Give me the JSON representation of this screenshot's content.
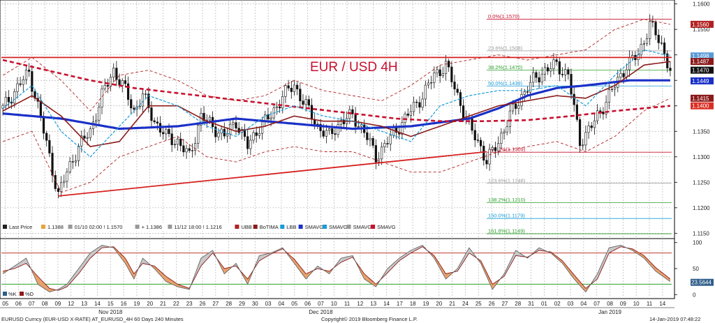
{
  "chart_data": {
    "type": "candlestick",
    "title": "EUR / USD 4H",
    "price_axis": {
      "ticks": [
        "1.1600",
        "1.1550",
        "1.1500",
        "1.1450",
        "1.1400",
        "1.1350",
        "1.1300",
        "1.1250",
        "1.1200",
        "1.1150"
      ],
      "range": [
        1.1145,
        1.1605
      ]
    },
    "osc_axis": {
      "ticks": [
        "100",
        "50",
        "0"
      ],
      "range": [
        -5,
        105
      ]
    },
    "price_badges": [
      {
        "label": "1.1560",
        "value": 1.156,
        "color": "#b22222"
      },
      {
        "label": "1.1498",
        "value": 1.1498,
        "color": "#5b9bd5"
      },
      {
        "label": "1.1487",
        "value": 1.1487,
        "color": "#8b1a1a"
      },
      {
        "label": "1.1470",
        "value": 1.147,
        "color": "#111111"
      },
      {
        "label": "1.1449",
        "value": 1.1449,
        "color": "#1a30c8"
      },
      {
        "label": "1.1415",
        "value": 1.1415,
        "color": "#8b1a1a"
      },
      {
        "label": "1.1400",
        "value": 1.14,
        "color": "#d93025"
      }
    ],
    "osc_badge": {
      "label": "23.5644",
      "value": 23.56,
      "color": "#2e5d8a"
    },
    "fib_levels": [
      {
        "label": "0.0%(1.1570)",
        "value": 1.157,
        "color": "#c8102e"
      },
      {
        "label": "23.6%(1.1508)",
        "value": 1.1508,
        "color": "#999999"
      },
      {
        "label": "38.2%(1.1470)",
        "value": 1.147,
        "color": "#2ca02c"
      },
      {
        "label": "50.0%(1.1439)",
        "value": 1.1439,
        "color": "#1a9cd8"
      },
      {
        "label": "100.0%(1.1309)",
        "value": 1.1309,
        "color": "#c8102e"
      },
      {
        "label": "123.6%(1.1248)",
        "value": 1.1248,
        "color": "#999999"
      },
      {
        "label": "138.2%(1.1210)",
        "value": 1.121,
        "color": "#2ca02c"
      },
      {
        "label": "150.0%(1.1179)",
        "value": 1.1179,
        "color": "#1a9cd8"
      },
      {
        "label": "161.8%(1.1149)",
        "value": 1.1149,
        "color": "#2ca02c"
      }
    ],
    "resistance_line": 1.1495,
    "trendline": {
      "from": {
        "bar": 19,
        "price": 1.1223
      },
      "to": {
        "bar": 166,
        "price": 1.131
      }
    },
    "osc_levels": {
      "overbought": 80,
      "oversold": 20
    },
    "x_ticks": [
      "05",
      "06",
      "07",
      "08",
      "09",
      "12",
      "13",
      "14",
      "15",
      "16",
      "19",
      "20",
      "21",
      "22",
      "23",
      "26",
      "27",
      "28",
      "29",
      "30",
      "03",
      "04",
      "05",
      "06",
      "07",
      "10",
      "11",
      "12",
      "13",
      "14",
      "17",
      "18",
      "19",
      "20",
      "21",
      "24",
      "25",
      "26",
      "27",
      "28",
      "31",
      "01",
      "02",
      "03",
      "04",
      "07",
      "08",
      "09",
      "10",
      "11",
      "14"
    ],
    "month_labels": [
      {
        "label": "Nov 2018",
        "tick_index": 8
      },
      {
        "label": "Dec 2018",
        "tick_index": 24
      },
      {
        "label": "Jan 2019",
        "tick_index": 46
      }
    ],
    "legend": [
      {
        "label": "Last Price",
        "color": "#222222"
      },
      {
        "label": "1.1388",
        "color": "#e8a33d"
      },
      {
        "label": "01/10 02:00 ! 1.1570",
        "color": "#999999"
      },
      {
        "label": "+ 1.1386",
        "color": "#999999"
      },
      {
        "label": "11/12 18:00 ! 1.1216",
        "color": "#999999"
      },
      {
        "label": "UBB",
        "color": "#b22222"
      },
      {
        "label": "BoTIMA",
        "color": "#8b1a1a"
      },
      {
        "label": "LBB",
        "color": "#1a9cd8"
      },
      {
        "label": "SMAVG",
        "color": "#1a30c8"
      },
      {
        "label": "SMAVG",
        "color": "#1a9cd8"
      },
      {
        "label": "SMAVG",
        "color": "#999999"
      },
      {
        "label": "SMAVG",
        "color": "#c8102e"
      }
    ],
    "osc_legend": [
      {
        "label": "%K",
        "color": "#2e5d8a"
      },
      {
        "label": "%D",
        "color": "#8b1a1a"
      }
    ],
    "footer_left": "EURUSD Curncy (EUR-USD X-RATE) AT_EURUSD_4H 60 Days 240 Minutes",
    "footer_center": "Copyright© 2019 Bloomberg Finance L.P.",
    "footer_right": "14-Jan-2019 07:48:22",
    "series": [
      {
        "name": "SMAVG",
        "color": "#1a30c8",
        "x": [
          0,
          20,
          40,
          60,
          80,
          100,
          120,
          140,
          160,
          170,
          180,
          190,
          200,
          215,
          229
        ],
        "values": [
          1.1385,
          1.1375,
          1.1355,
          1.136,
          1.1375,
          1.1365,
          1.1355,
          1.136,
          1.1375,
          1.1395,
          1.142,
          1.1435,
          1.144,
          1.145,
          1.145
        ]
      },
      {
        "name": "SMAVG",
        "color": "#c8102e",
        "x": [
          0,
          15,
          30,
          45,
          60,
          75,
          90,
          105,
          120,
          135,
          150,
          165,
          180,
          195,
          210,
          229
        ],
        "values": [
          1.149,
          1.147,
          1.145,
          1.1435,
          1.1425,
          1.1415,
          1.1405,
          1.1395,
          1.1385,
          1.1375,
          1.137,
          1.137,
          1.1372,
          1.138,
          1.139,
          1.14
        ]
      },
      {
        "name": "BoTIMA",
        "color": "#8b1a1a",
        "x": [
          0,
          10,
          20,
          30,
          40,
          50,
          60,
          70,
          80,
          90,
          100,
          110,
          120,
          130,
          140,
          150,
          160,
          170,
          180,
          190,
          200,
          210,
          220,
          229
        ],
        "values": [
          1.139,
          1.142,
          1.138,
          1.132,
          1.133,
          1.14,
          1.14,
          1.137,
          1.135,
          1.136,
          1.138,
          1.137,
          1.137,
          1.136,
          1.134,
          1.136,
          1.138,
          1.14,
          1.141,
          1.142,
          1.1415,
          1.144,
          1.148,
          1.1487
        ]
      },
      {
        "name": "UBB",
        "color": "#b22222",
        "x": [
          0,
          10,
          20,
          30,
          40,
          50,
          60,
          70,
          80,
          90,
          100,
          110,
          120,
          130,
          140,
          150,
          160,
          170,
          180,
          190,
          200,
          210,
          220,
          229
        ],
        "values": [
          1.146,
          1.1495,
          1.145,
          1.139,
          1.146,
          1.147,
          1.145,
          1.142,
          1.141,
          1.142,
          1.145,
          1.143,
          1.142,
          1.141,
          1.144,
          1.148,
          1.149,
          1.15,
          1.149,
          1.15,
          1.151,
          1.155,
          1.157,
          1.156
        ]
      },
      {
        "name": "LBB",
        "color": "#b22222",
        "x": [
          0,
          10,
          20,
          30,
          40,
          50,
          60,
          70,
          80,
          90,
          100,
          110,
          120,
          130,
          140,
          150,
          160,
          170,
          180,
          190,
          200,
          210,
          220,
          229
        ],
        "values": [
          1.133,
          1.135,
          1.123,
          1.125,
          1.13,
          1.132,
          1.134,
          1.13,
          1.129,
          1.131,
          1.132,
          1.131,
          1.131,
          1.129,
          1.127,
          1.127,
          1.129,
          1.131,
          1.132,
          1.133,
          1.131,
          1.134,
          1.139,
          1.1415
        ]
      },
      {
        "name": "SMAVG",
        "color": "#1a9cd8",
        "x": [
          0,
          10,
          20,
          30,
          40,
          50,
          60,
          70,
          80,
          90,
          100,
          110,
          120,
          130,
          140,
          150,
          160,
          170,
          180,
          190,
          200,
          210,
          220,
          229
        ],
        "values": [
          1.1395,
          1.144,
          1.135,
          1.13,
          1.136,
          1.142,
          1.14,
          1.136,
          1.134,
          1.138,
          1.14,
          1.138,
          1.137,
          1.135,
          1.133,
          1.14,
          1.142,
          1.143,
          1.143,
          1.144,
          1.14,
          1.146,
          1.151,
          1.1498
        ]
      }
    ],
    "price_path": {
      "x": [
        0,
        6,
        9,
        12,
        16,
        19,
        22,
        26,
        30,
        34,
        38,
        42,
        45,
        48,
        52,
        56,
        60,
        64,
        68,
        72,
        76,
        80,
        84,
        88,
        92,
        96,
        100,
        104,
        108,
        112,
        116,
        120,
        124,
        128,
        132,
        136,
        140,
        144,
        148,
        152,
        156,
        160,
        164,
        166,
        170,
        174,
        178,
        182,
        186,
        190,
        194,
        198,
        202,
        206,
        210,
        214,
        218,
        222,
        226,
        229
      ],
      "values": [
        1.1395,
        1.1445,
        1.1465,
        1.14,
        1.13,
        1.1225,
        1.127,
        1.132,
        1.135,
        1.142,
        1.147,
        1.143,
        1.139,
        1.142,
        1.137,
        1.134,
        1.133,
        1.13,
        1.138,
        1.136,
        1.134,
        1.137,
        1.132,
        1.136,
        1.138,
        1.142,
        1.144,
        1.14,
        1.136,
        1.134,
        1.137,
        1.138,
        1.135,
        1.13,
        1.133,
        1.136,
        1.139,
        1.142,
        1.146,
        1.148,
        1.142,
        1.136,
        1.132,
        1.129,
        1.133,
        1.138,
        1.142,
        1.145,
        1.147,
        1.148,
        1.146,
        1.133,
        1.136,
        1.14,
        1.144,
        1.148,
        1.15,
        1.156,
        1.152,
        1.147
      ]
    },
    "stoch_k": {
      "x": [
        0,
        4,
        8,
        12,
        16,
        19,
        22,
        26,
        30,
        34,
        38,
        42,
        45,
        48,
        52,
        56,
        60,
        64,
        68,
        72,
        76,
        80,
        84,
        88,
        92,
        96,
        100,
        104,
        108,
        112,
        116,
        120,
        124,
        128,
        132,
        136,
        140,
        144,
        148,
        152,
        156,
        160,
        164,
        168,
        172,
        176,
        180,
        184,
        188,
        192,
        196,
        200,
        204,
        208,
        212,
        216,
        220,
        224,
        229
      ],
      "values": [
        40,
        55,
        70,
        20,
        5,
        10,
        20,
        50,
        80,
        95,
        90,
        60,
        30,
        70,
        50,
        25,
        15,
        10,
        70,
        85,
        40,
        60,
        20,
        75,
        80,
        90,
        60,
        30,
        55,
        40,
        70,
        75,
        30,
        15,
        50,
        70,
        85,
        95,
        70,
        30,
        50,
        90,
        60,
        10,
        40,
        85,
        70,
        90,
        80,
        60,
        30,
        5,
        40,
        90,
        95,
        85,
        70,
        45,
        25
      ]
    },
    "stoch_d": {
      "x": [
        0,
        4,
        8,
        12,
        16,
        19,
        22,
        26,
        30,
        34,
        38,
        42,
        45,
        48,
        52,
        56,
        60,
        64,
        68,
        72,
        76,
        80,
        84,
        88,
        92,
        96,
        100,
        104,
        108,
        112,
        116,
        120,
        124,
        128,
        132,
        136,
        140,
        144,
        148,
        152,
        156,
        160,
        164,
        168,
        172,
        176,
        180,
        184,
        188,
        192,
        196,
        200,
        204,
        208,
        212,
        216,
        220,
        224,
        229
      ],
      "values": [
        45,
        50,
        60,
        35,
        12,
        8,
        15,
        40,
        70,
        90,
        92,
        70,
        40,
        60,
        55,
        35,
        20,
        12,
        55,
        80,
        50,
        55,
        30,
        65,
        78,
        88,
        68,
        40,
        50,
        45,
        62,
        72,
        40,
        20,
        42,
        65,
        80,
        92,
        75,
        40,
        45,
        80,
        65,
        20,
        35,
        75,
        72,
        85,
        82,
        65,
        38,
        12,
        30,
        80,
        92,
        88,
        75,
        52,
        30
      ]
    }
  }
}
